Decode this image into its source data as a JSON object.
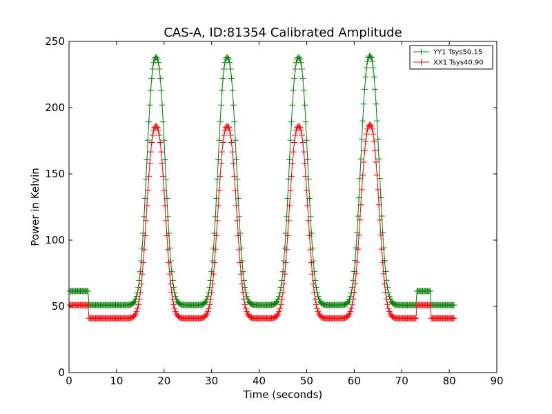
{
  "chart_data": {
    "type": "line",
    "title": "CAS-A, ID:81354 Calibrated Amplitude",
    "xlabel": "Time (seconds)",
    "ylabel": "Power in Kelvin",
    "xlim": [
      0,
      90
    ],
    "ylim": [
      0,
      250
    ],
    "xticks": [
      "0",
      "10",
      "20",
      "30",
      "40",
      "50",
      "60",
      "70",
      "80",
      "90"
    ],
    "yticks": [
      "0",
      "50",
      "100",
      "150",
      "200",
      "250"
    ],
    "grid": false,
    "legend_position": "top-right",
    "marker": "+",
    "sample_step_seconds": 0.2,
    "series": [
      {
        "name": "YY1 Tsys50.15",
        "color": "#008000",
        "segments": [
          {
            "x0": 0.2,
            "x1": 4.0,
            "baseline": 61.5
          },
          {
            "x0": 4.0,
            "x1": 73.0,
            "baseline": 51.0,
            "peaks": [
              {
                "center": 18.3,
                "height": 238
              },
              {
                "center": 33.3,
                "height": 238
              },
              {
                "center": 48.3,
                "height": 238
              },
              {
                "center": 63.3,
                "height": 239
              }
            ]
          },
          {
            "x0": 73.0,
            "x1": 76.0,
            "baseline": 61.5
          },
          {
            "x0": 76.0,
            "x1": 81.0,
            "baseline": 51.0
          }
        ]
      },
      {
        "name": "XX1 Tsys40.90",
        "color": "#ff0000",
        "segments": [
          {
            "x0": 0.2,
            "x1": 4.0,
            "baseline": 51.0
          },
          {
            "x0": 4.0,
            "x1": 73.0,
            "baseline": 41.0,
            "peaks": [
              {
                "center": 18.3,
                "height": 186
              },
              {
                "center": 33.3,
                "height": 186
              },
              {
                "center": 48.3,
                "height": 186
              },
              {
                "center": 63.3,
                "height": 187
              }
            ]
          },
          {
            "x0": 73.0,
            "x1": 76.0,
            "baseline": 51.0
          },
          {
            "x0": 76.0,
            "x1": 81.0,
            "baseline": 41.0
          }
        ]
      }
    ]
  }
}
